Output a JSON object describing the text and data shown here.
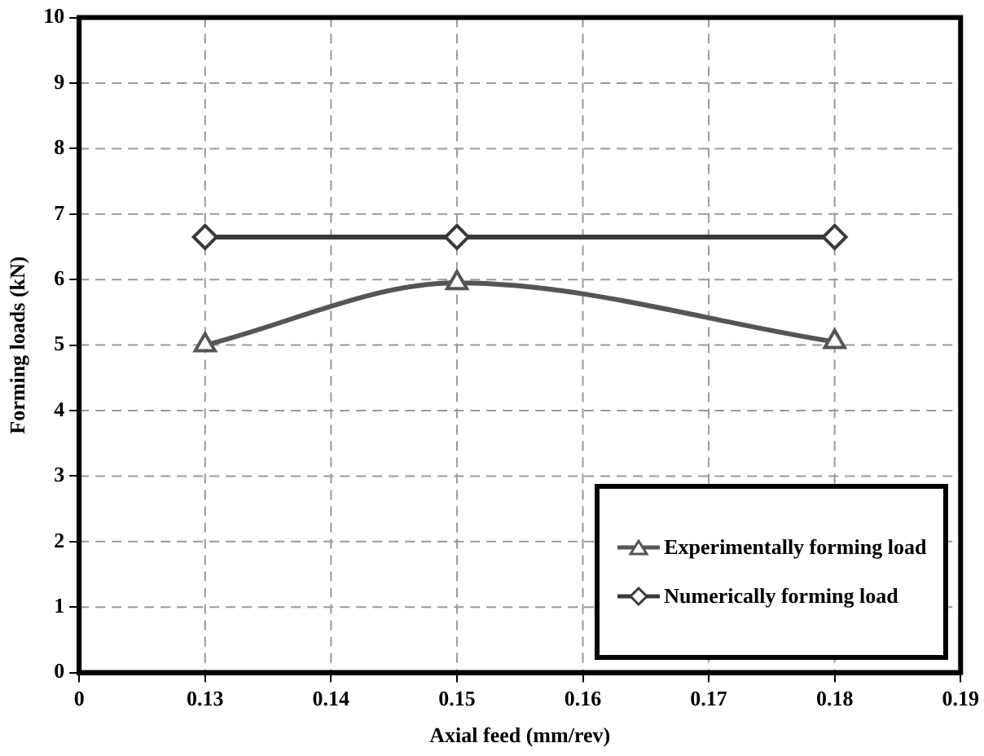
{
  "chart_data": {
    "type": "line",
    "xlabel": "Axial feed (mm/rev)",
    "ylabel": "Forming loads (kN)",
    "x": [
      0.13,
      0.15,
      0.18
    ],
    "series": [
      {
        "name": "Experimentally forming load",
        "color": "#555555",
        "values": [
          5.0,
          5.95,
          5.05
        ],
        "marker": "triangle"
      },
      {
        "name": "Numerically forming load",
        "color": "#3a3a3a",
        "values": [
          6.65,
          6.65,
          6.65
        ],
        "marker": "diamond"
      }
    ],
    "xlim": [
      0.12,
      0.19
    ],
    "xticks": [
      {
        "value": 0.12,
        "label": "0"
      },
      0.13,
      0.14,
      0.15,
      0.16,
      0.17,
      0.18,
      0.19
    ],
    "ylim": [
      0,
      10
    ],
    "yticks": [
      0,
      1,
      2,
      3,
      4,
      5,
      6,
      7,
      8,
      9,
      10
    ],
    "grid": true,
    "legend": "bottom right"
  }
}
